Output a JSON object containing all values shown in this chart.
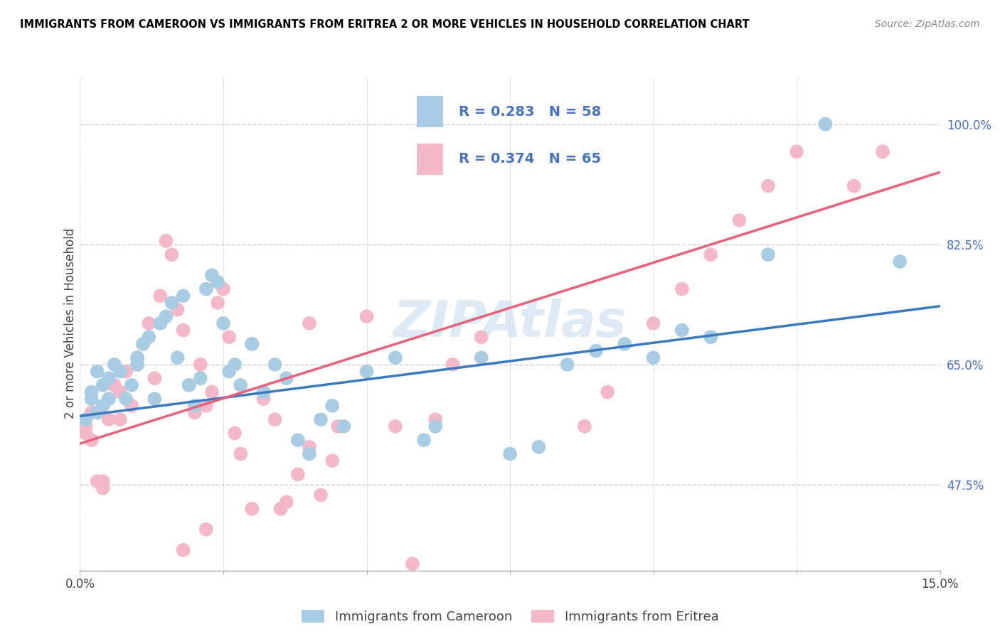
{
  "title": "IMMIGRANTS FROM CAMEROON VS IMMIGRANTS FROM ERITREA 2 OR MORE VEHICLES IN HOUSEHOLD CORRELATION CHART",
  "source": "Source: ZipAtlas.com",
  "xlim": [
    0.0,
    0.15
  ],
  "ylim": [
    0.35,
    1.07
  ],
  "ylabel": "2 or more Vehicles in Household",
  "legend_blue_R": "R = 0.283",
  "legend_blue_N": "N = 58",
  "legend_pink_R": "R = 0.374",
  "legend_pink_N": "N = 65",
  "blue_color": "#a8cce4",
  "pink_color": "#f4b8c8",
  "blue_line_color": "#3a7abf",
  "pink_line_color": "#e8607a",
  "legend_text_color": "#4472c4",
  "ytick_color": "#4472c4",
  "watermark": "ZIPAtlas",
  "blue_line_x0": 0.0,
  "blue_line_y0": 0.575,
  "blue_line_x1": 0.15,
  "blue_line_y1": 0.735,
  "pink_line_x0": 0.0,
  "pink_line_y0": 0.535,
  "pink_line_x1": 0.15,
  "pink_line_y1": 0.93,
  "blue_x": [
    0.001,
    0.002,
    0.002,
    0.003,
    0.003,
    0.004,
    0.004,
    0.005,
    0.005,
    0.006,
    0.007,
    0.008,
    0.009,
    0.01,
    0.01,
    0.011,
    0.012,
    0.013,
    0.014,
    0.015,
    0.016,
    0.017,
    0.018,
    0.019,
    0.02,
    0.021,
    0.022,
    0.023,
    0.024,
    0.025,
    0.026,
    0.027,
    0.028,
    0.03,
    0.032,
    0.034,
    0.036,
    0.038,
    0.04,
    0.042,
    0.044,
    0.046,
    0.05,
    0.055,
    0.06,
    0.062,
    0.07,
    0.075,
    0.08,
    0.085,
    0.09,
    0.095,
    0.1,
    0.105,
    0.11,
    0.12,
    0.13,
    0.143
  ],
  "blue_y": [
    0.57,
    0.61,
    0.6,
    0.58,
    0.64,
    0.62,
    0.59,
    0.6,
    0.63,
    0.65,
    0.64,
    0.6,
    0.62,
    0.65,
    0.66,
    0.68,
    0.69,
    0.6,
    0.71,
    0.72,
    0.74,
    0.66,
    0.75,
    0.62,
    0.59,
    0.63,
    0.76,
    0.78,
    0.77,
    0.71,
    0.64,
    0.65,
    0.62,
    0.68,
    0.61,
    0.65,
    0.63,
    0.54,
    0.52,
    0.57,
    0.59,
    0.56,
    0.64,
    0.66,
    0.54,
    0.56,
    0.66,
    0.52,
    0.53,
    0.65,
    0.67,
    0.68,
    0.66,
    0.7,
    0.69,
    0.81,
    1.0,
    0.8
  ],
  "pink_x": [
    0.001,
    0.001,
    0.002,
    0.002,
    0.003,
    0.003,
    0.004,
    0.004,
    0.005,
    0.005,
    0.006,
    0.007,
    0.007,
    0.008,
    0.009,
    0.01,
    0.011,
    0.012,
    0.013,
    0.014,
    0.015,
    0.016,
    0.017,
    0.018,
    0.019,
    0.02,
    0.021,
    0.022,
    0.023,
    0.024,
    0.025,
    0.026,
    0.027,
    0.028,
    0.03,
    0.032,
    0.034,
    0.036,
    0.038,
    0.04,
    0.042,
    0.044,
    0.05,
    0.055,
    0.058,
    0.062,
    0.065,
    0.07,
    0.088,
    0.092,
    0.1,
    0.105,
    0.11,
    0.115,
    0.12,
    0.125,
    0.13,
    0.135,
    0.14,
    0.03,
    0.018,
    0.022,
    0.035,
    0.04,
    0.045
  ],
  "pink_y": [
    0.56,
    0.55,
    0.58,
    0.54,
    0.58,
    0.48,
    0.48,
    0.47,
    0.6,
    0.57,
    0.62,
    0.57,
    0.61,
    0.64,
    0.59,
    0.66,
    0.68,
    0.71,
    0.63,
    0.75,
    0.83,
    0.81,
    0.73,
    0.7,
    0.62,
    0.58,
    0.65,
    0.59,
    0.61,
    0.74,
    0.76,
    0.69,
    0.55,
    0.52,
    0.68,
    0.6,
    0.57,
    0.45,
    0.49,
    0.53,
    0.46,
    0.51,
    0.72,
    0.56,
    0.36,
    0.57,
    0.65,
    0.69,
    0.56,
    0.61,
    0.71,
    0.76,
    0.81,
    0.86,
    0.91,
    0.96,
    1.0,
    0.91,
    0.96,
    0.44,
    0.38,
    0.41,
    0.44,
    0.71,
    0.56
  ]
}
